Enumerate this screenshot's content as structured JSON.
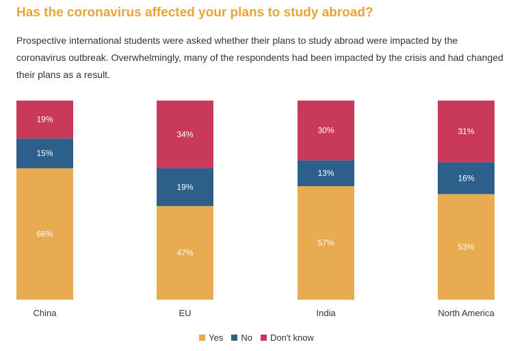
{
  "title": "Has the coronavirus affected your plans to study abroad?",
  "description": "Prospective international students were asked whether their plans to study abroad were impacted by the coronavirus outbreak. Overwhelmingly, many of the respondents had been impacted by the crisis and had changed their plans as a result.",
  "chart_data": {
    "type": "bar",
    "stacked": true,
    "categories": [
      "China",
      "EU",
      "India",
      "North America"
    ],
    "series": [
      {
        "name": "Yes",
        "color": "#e8ab4f",
        "values": [
          66,
          47,
          57,
          53
        ],
        "labels": [
          "66%",
          "47%",
          "57%",
          "53%"
        ]
      },
      {
        "name": "No",
        "color": "#2d5f8b",
        "values": [
          15,
          19,
          13,
          16
        ],
        "labels": [
          "15%",
          "19%",
          "13%",
          "16%"
        ]
      },
      {
        "name": "Don't know",
        "color": "#c93a5a",
        "values": [
          19,
          34,
          30,
          31
        ],
        "labels": [
          "19%",
          "34%",
          "30%",
          "31%"
        ]
      }
    ],
    "ylim": [
      0,
      100
    ],
    "grid": false,
    "legend_position": "bottom"
  }
}
